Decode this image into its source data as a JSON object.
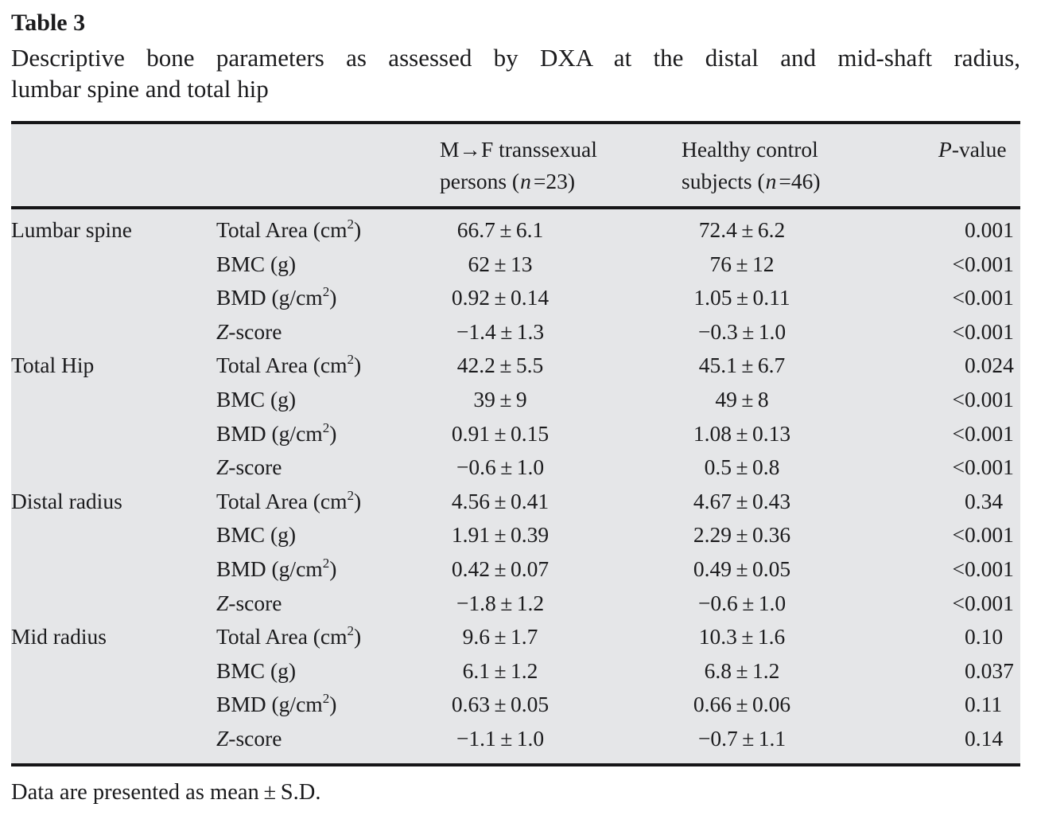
{
  "page": {
    "title": "Table 3",
    "caption_line1": "Descriptive bone parameters as assessed by DXA at the distal and mid-shaft radius,",
    "caption_line2": "lumbar spine and total hip",
    "footnote": "Data are presented as mean±S.D."
  },
  "table": {
    "header": {
      "region_col": "",
      "parameter_col": "",
      "col3": {
        "line1": "M→F transsexual",
        "pre": "persons (",
        "var": "n",
        "post": "=23)"
      },
      "col4": {
        "line1": "Healthy control",
        "pre": "subjects (",
        "var": "n",
        "post": "=46)"
      },
      "col5": {
        "var": "P",
        "post": "-value"
      }
    },
    "groups": [
      {
        "region": "Lumbar spine",
        "rows": [
          {
            "param": "Total Area (cm²)",
            "mf": "66.7±6.1",
            "hc": "72.4±6.2",
            "p": "0.001"
          },
          {
            "param": "BMC (g)",
            "mf": "62±13",
            "hc": "76±12",
            "p": "<0.001"
          },
          {
            "param": "BMD (g/cm²)",
            "mf": "0.92±0.14",
            "hc": "1.05±0.11",
            "p": "<0.001"
          },
          {
            "param": "Z-score",
            "mf": "−1.4±1.3",
            "hc": "−0.3±1.0",
            "p": "<0.001"
          }
        ]
      },
      {
        "region": "Total Hip",
        "rows": [
          {
            "param": "Total Area (cm²)",
            "mf": "42.2±5.5",
            "hc": "45.1±6.7",
            "p": "0.024"
          },
          {
            "param": "BMC (g)",
            "mf": "39±9",
            "hc": "49±8",
            "p": "<0.001"
          },
          {
            "param": "BMD (g/cm²)",
            "mf": "0.91±0.15",
            "hc": "1.08±0.13",
            "p": "<0.001"
          },
          {
            "param": "Z-score",
            "mf": "−0.6±1.0",
            "hc": "0.5±0.8",
            "p": "<0.001"
          }
        ]
      },
      {
        "region": "Distal radius",
        "rows": [
          {
            "param": "Total Area (cm²)",
            "mf": "4.56±0.41",
            "hc": "4.67±0.43",
            "p": "0.34"
          },
          {
            "param": "BMC (g)",
            "mf": "1.91±0.39",
            "hc": "2.29±0.36",
            "p": "<0.001"
          },
          {
            "param": "BMD (g/cm²)",
            "mf": "0.42±0.07",
            "hc": "0.49±0.05",
            "p": "<0.001"
          },
          {
            "param": "Z-score",
            "mf": "−1.8±1.2",
            "hc": "−0.6±1.0",
            "p": "<0.001"
          }
        ]
      },
      {
        "region": "Mid radius",
        "rows": [
          {
            "param": "Total Area (cm²)",
            "mf": "9.6±1.7",
            "hc": "10.3±1.6",
            "p": "0.10"
          },
          {
            "param": "BMC (g)",
            "mf": "6.1±1.2",
            "hc": "6.8±1.2",
            "p": "0.037"
          },
          {
            "param": "BMD (g/cm²)",
            "mf": "0.63±0.05",
            "hc": "0.66±0.06",
            "p": "0.11"
          },
          {
            "param": "Z-score",
            "mf": "−1.1±1.0",
            "hc": "−0.7±1.1",
            "p": "0.14"
          }
        ]
      }
    ]
  },
  "colors": {
    "table_background": "#e5e6e8",
    "rule": "#161618",
    "text": "#1b1b1d",
    "page_background": "#ffffff"
  }
}
